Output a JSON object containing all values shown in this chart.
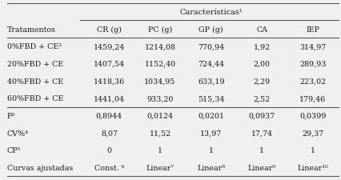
{
  "title": "Características¹",
  "col_headers": [
    "CR (g)",
    "PC (g)",
    "GP (g)",
    "CA",
    "IEP"
  ],
  "row_label_col": [
    "Tratamentos",
    "0%FBD + CE²",
    "20%FBD + CE",
    "40%FBD + CE",
    "60%FBD + CE",
    "P³",
    "CV%⁴",
    "CP⁵",
    "Curvas ajustadas"
  ],
  "rows": [
    [
      "1459,24",
      "1214,08",
      "770,94",
      "1,92",
      "314,97"
    ],
    [
      "1407,54",
      "1152,40",
      "724,44",
      "2,00",
      "289,93"
    ],
    [
      "1418,36",
      "1034,95",
      "633,19",
      "2,29",
      "223,02"
    ],
    [
      "1441,04",
      "933,20",
      "515,34",
      "2,52",
      "179,46"
    ],
    [
      "0,8944",
      "0,0124",
      "0,0201",
      "0,0937",
      "0,0399"
    ],
    [
      "8,07",
      "11,52",
      "13,97",
      "17,74",
      "29,37"
    ],
    [
      "0",
      "1",
      "1",
      "1",
      "1"
    ],
    [
      "Const. ⁶",
      "Linear⁷",
      "Linear⁸",
      "Linear⁹",
      "Linear¹⁰"
    ]
  ],
  "bg_color": "#f0f0f0",
  "text_color": "#1a1a1a",
  "font_size": 6.8,
  "title_font_size": 7.0,
  "line_color": "#555555",
  "figsize": [
    4.27,
    2.26
  ],
  "dpi": 100
}
